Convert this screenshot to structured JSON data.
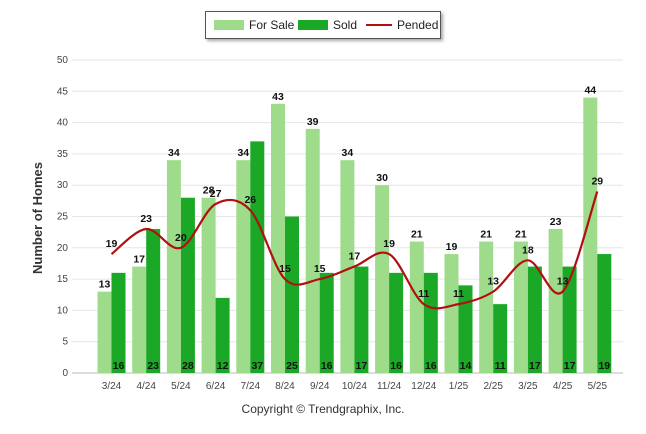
{
  "legend": {
    "for_sale": "For Sale",
    "sold": "Sold",
    "pended": "Pended"
  },
  "colors": {
    "for_sale": "#9edc8c",
    "sold": "#1aa826",
    "pended": "#b01010",
    "grid": "#e6e6e6"
  },
  "footer": "Copyright © Trendgraphix, Inc.",
  "chart_data": {
    "type": "bar",
    "title": "",
    "xlabel": "",
    "ylabel": "Number of Homes",
    "ylim": [
      0,
      50
    ],
    "yticks": [
      0,
      5,
      10,
      15,
      20,
      25,
      30,
      35,
      40,
      45,
      50
    ],
    "grid": true,
    "legend_position": "top-center",
    "categories": [
      "3/24",
      "4/24",
      "5/24",
      "6/24",
      "7/24",
      "8/24",
      "9/24",
      "10/24",
      "11/24",
      "12/24",
      "1/25",
      "2/25",
      "3/25",
      "4/25",
      "5/25"
    ],
    "series": [
      {
        "name": "For Sale",
        "type": "bar",
        "values": [
          13,
          17,
          34,
          28,
          34,
          43,
          39,
          34,
          30,
          21,
          19,
          21,
          21,
          23,
          44
        ]
      },
      {
        "name": "Sold",
        "type": "bar",
        "values": [
          16,
          23,
          28,
          12,
          37,
          25,
          16,
          17,
          16,
          16,
          14,
          11,
          17,
          17,
          19
        ]
      },
      {
        "name": "Pended",
        "type": "line",
        "values": [
          19,
          23,
          20,
          27,
          26,
          15,
          15,
          17,
          19,
          11,
          11,
          13,
          18,
          13,
          29
        ]
      }
    ]
  }
}
